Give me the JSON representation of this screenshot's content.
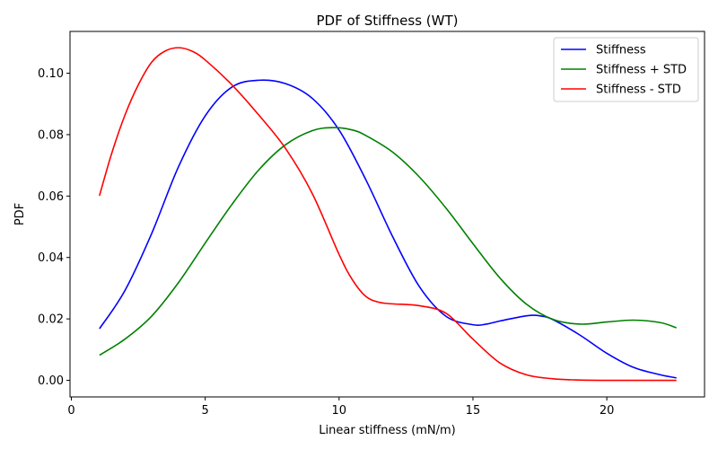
{
  "chart_data": {
    "type": "line",
    "title": "PDF of Stiffness (WT)",
    "xlabel": "Linear stiffness (mN/m)",
    "ylabel": "PDF",
    "xlim": [
      -0.05,
      23.65
    ],
    "ylim": [
      -0.0054,
      0.1136
    ],
    "xticks": [
      0,
      5,
      10,
      15,
      20
    ],
    "xtick_labels": [
      "0",
      "5",
      "10",
      "15",
      "20"
    ],
    "yticks": [
      0.0,
      0.02,
      0.04,
      0.06,
      0.08,
      0.1
    ],
    "ytick_labels": [
      "0.00",
      "0.02",
      "0.04",
      "0.06",
      "0.08",
      "0.10"
    ],
    "grid": false,
    "legend_position": "top-right",
    "series": [
      {
        "name": "Stiffness",
        "color": "#0000ff",
        "x": [
          1.05,
          2,
          3,
          4,
          5,
          6,
          7,
          8,
          9,
          10,
          11,
          12,
          13,
          14,
          15,
          15.5,
          16,
          17,
          17.5,
          18,
          19,
          20,
          21,
          22,
          22.6
        ],
        "y": [
          0.0168,
          0.0292,
          0.0478,
          0.0695,
          0.0861,
          0.0955,
          0.0977,
          0.0966,
          0.0918,
          0.0815,
          0.0653,
          0.0468,
          0.0305,
          0.0208,
          0.0181,
          0.0183,
          0.0193,
          0.021,
          0.021,
          0.0197,
          0.0147,
          0.0088,
          0.0042,
          0.0018,
          0.0008
        ]
      },
      {
        "name": "Stiffness + STD",
        "color": "#008000",
        "x": [
          1.05,
          2,
          3,
          4,
          5,
          6,
          7,
          8,
          9,
          9.8,
          10.5,
          11,
          12,
          13,
          14,
          15,
          16,
          17,
          18,
          19,
          20,
          21,
          22,
          22.6
        ],
        "y": [
          0.0082,
          0.0134,
          0.0209,
          0.0318,
          0.0447,
          0.0573,
          0.0685,
          0.0767,
          0.0813,
          0.0823,
          0.0815,
          0.0797,
          0.0743,
          0.0662,
          0.056,
          0.0445,
          0.0334,
          0.0248,
          0.0198,
          0.0183,
          0.019,
          0.0196,
          0.0188,
          0.0171
        ]
      },
      {
        "name": "Stiffness - STD",
        "color": "#ff0000",
        "x": [
          1.05,
          1.5,
          2,
          2.5,
          3,
          3.5,
          4,
          4.5,
          5,
          6,
          7,
          8,
          9,
          10,
          10.5,
          11,
          11.5,
          12,
          13,
          14,
          15,
          16,
          17,
          18,
          19,
          20,
          22.6
        ],
        "y": [
          0.0601,
          0.0737,
          0.0863,
          0.0962,
          0.1036,
          0.1072,
          0.1083,
          0.1072,
          0.1043,
          0.0962,
          0.0864,
          0.0755,
          0.0608,
          0.041,
          0.0327,
          0.0273,
          0.0254,
          0.0249,
          0.0243,
          0.0218,
          0.0134,
          0.0057,
          0.0018,
          0.0005,
          0.0001,
          0.0,
          0.0
        ]
      }
    ]
  }
}
